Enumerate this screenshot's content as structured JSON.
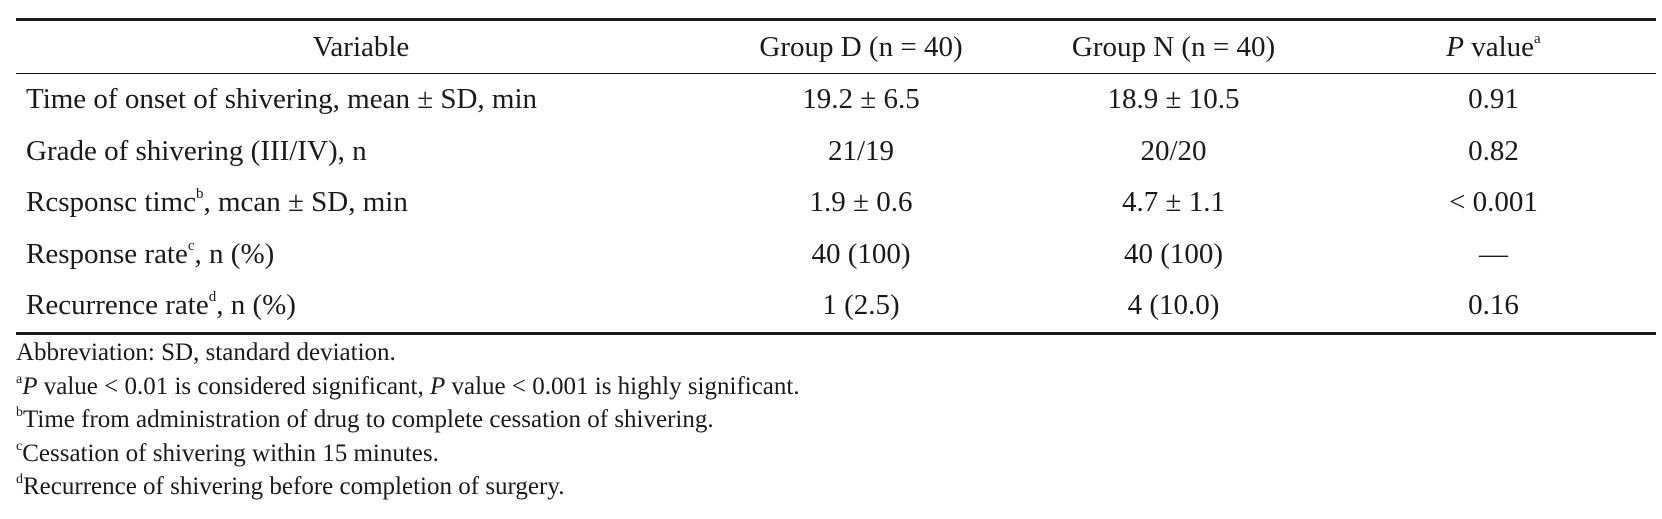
{
  "table": {
    "headers": {
      "variable": "Variable",
      "group_d": "Group D (n = 40)",
      "group_n": "Group N (n = 40)",
      "p_italic": "P",
      "p_rest": " value",
      "p_sup": "a"
    },
    "rows": [
      {
        "label": "Time of onset of shivering, mean ± SD, min",
        "label_sup": "",
        "label_rest": "",
        "group_d": "19.2 ± 6.5",
        "group_n": "18.9 ± 10.5",
        "p_value": "0.91"
      },
      {
        "label": "Grade of shivering (III/IV), n",
        "label_sup": "",
        "label_rest": "",
        "group_d": "21/19",
        "group_n": "20/20",
        "p_value": "0.82"
      },
      {
        "label": "Rcsponsc timc",
        "label_sup": "b",
        "label_rest": ", mcan ± SD, min",
        "group_d": "1.9 ± 0.6",
        "group_n": "4.7 ± 1.1",
        "p_value": "< 0.001"
      },
      {
        "label": "Response rate",
        "label_sup": "c",
        "label_rest": ", n (%)",
        "group_d": "40 (100)",
        "group_n": "40 (100)",
        "p_value": "—"
      },
      {
        "label": "Recurrence rate",
        "label_sup": "d",
        "label_rest": ", n (%)",
        "group_d": "1 (2.5)",
        "group_n": "4 (10.0)",
        "p_value": "0.16"
      }
    ]
  },
  "footnotes": {
    "abbreviation": "Abbreviation: SD, standard deviation.",
    "a": {
      "sup": "a",
      "p1": "P",
      "mid": " value < 0.01 is considered significant, ",
      "p2": "P",
      "end": " value < 0.001 is highly significant."
    },
    "b": {
      "sup": "b",
      "text": "Time from administration of drug to complete cessation of shivering."
    },
    "c": {
      "sup": "c",
      "text": "Cessation of shivering within 15 minutes."
    },
    "d": {
      "sup": "d",
      "text": "Recurrence of shivering before completion of surgery."
    }
  }
}
